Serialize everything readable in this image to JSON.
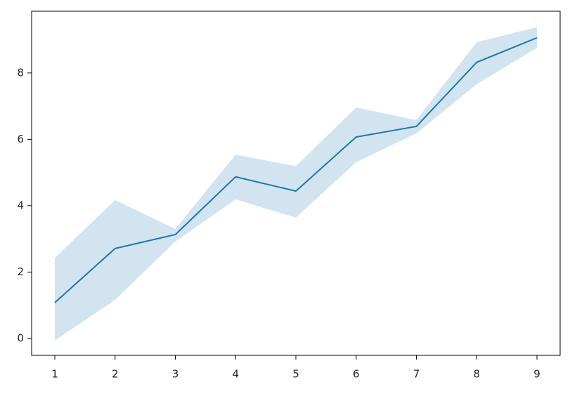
{
  "chart_data": {
    "type": "line",
    "x": [
      1,
      2,
      3,
      4,
      5,
      6,
      7,
      8,
      9
    ],
    "values": [
      1.08,
      2.71,
      3.13,
      4.87,
      4.44,
      6.07,
      6.39,
      8.32,
      9.06
    ],
    "upper": [
      2.43,
      4.17,
      3.3,
      5.54,
      5.19,
      6.96,
      6.58,
      8.93,
      9.38
    ],
    "lower": [
      -0.06,
      1.16,
      2.92,
      4.19,
      3.64,
      5.31,
      6.18,
      7.66,
      8.76
    ],
    "color": "#1f77b4",
    "xlim": [
      0.615,
      9.385
    ],
    "xticks": [
      1,
      2,
      3,
      4,
      5,
      6,
      7,
      8,
      9
    ],
    "ylim": [
      -0.51,
      9.86
    ],
    "yticks": [
      0,
      2,
      4,
      6,
      8
    ]
  }
}
